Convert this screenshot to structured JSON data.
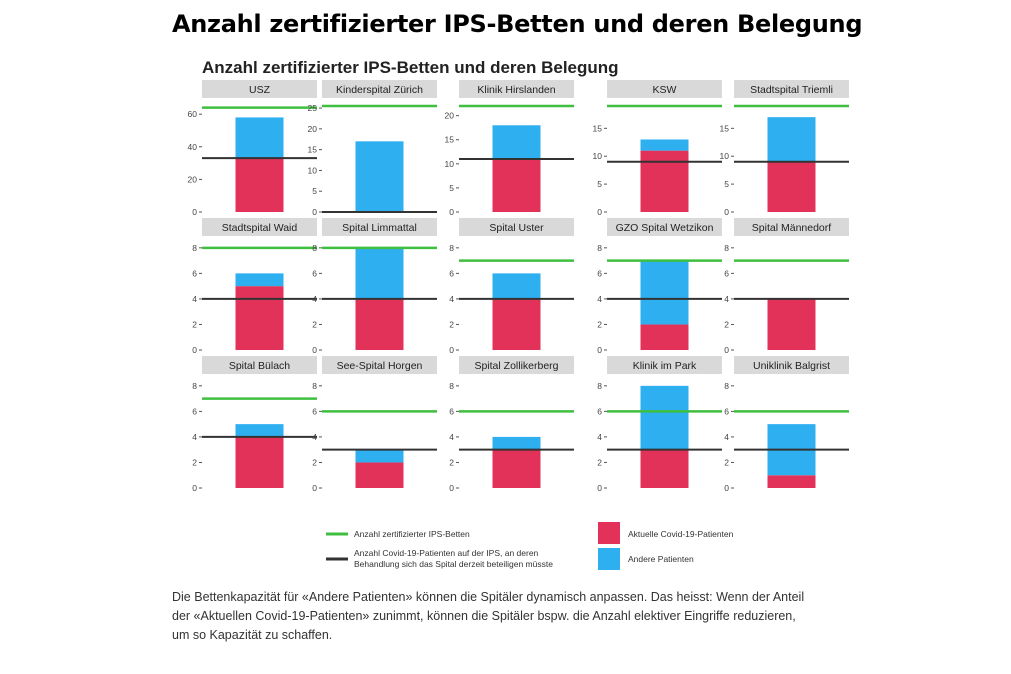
{
  "page": {
    "title": "Anzahl zertifizierter IPS-Betten und deren Belegung",
    "caption_lines": [
      "Die Bettenkapazität für «Andere Patienten» können die Spitäler dynamisch anpassen. Das heisst: Wenn der Anteil",
      "der «Aktuellen Covid-19-Patienten» zunimmt, können die Spitäler bspw. die Anzahl elektiver Eingriffe reduzieren,",
      "um so Kapazität zu schaffen."
    ]
  },
  "colors": {
    "covid": "#e3325a",
    "other": "#2eaff0",
    "certified_line": "#3fbf3f",
    "threshold_line": "#333333",
    "strip": "#d9d9d9",
    "panel_bg": "#ffffff"
  },
  "chart_data": {
    "type": "bar",
    "title": "Anzahl zertifizierter IPS-Betten und deren Belegung",
    "legend": {
      "certified": "Anzahl zertifizierter IPS-Betten",
      "threshold": "Anzahl Covid-19-Patienten auf der IPS, an deren Behandlung sich das Spital derzeit beteiligen müsste",
      "covid": "Aktuelle Covid-19-Patienten",
      "other": "Andere Patienten"
    },
    "panels": [
      {
        "name": "USZ",
        "ylim": [
          0,
          65
        ],
        "yticks": [
          0,
          20,
          40,
          60
        ],
        "covid": 33,
        "other": 25,
        "certified": 64,
        "threshold": 33
      },
      {
        "name": "Kinderspital Zürich",
        "ylim": [
          0,
          25.5
        ],
        "yticks": [
          0,
          5,
          10,
          15,
          20,
          25
        ],
        "covid": 0,
        "other": 17,
        "certified": 25.5,
        "threshold": 0
      },
      {
        "name": "Klinik Hirslanden",
        "ylim": [
          0,
          22
        ],
        "yticks": [
          0,
          5,
          10,
          15,
          20
        ],
        "covid": 11,
        "other": 7,
        "certified": 22,
        "threshold": 11
      },
      {
        "name": "KSW",
        "ylim": [
          0,
          19
        ],
        "yticks": [
          0,
          5,
          10,
          15
        ],
        "covid": 11,
        "other": 2,
        "certified": 19,
        "threshold": 9
      },
      {
        "name": "Stadtspital Triemli",
        "ylim": [
          0,
          19
        ],
        "yticks": [
          0,
          5,
          10,
          15
        ],
        "covid": 9,
        "other": 8,
        "certified": 19,
        "threshold": 9
      },
      {
        "name": "Stadtspital Waid",
        "ylim": [
          0,
          8.3
        ],
        "yticks": [
          0,
          2,
          4,
          6,
          8
        ],
        "covid": 5,
        "other": 1,
        "certified": 8,
        "threshold": 4
      },
      {
        "name": "Spital Limmattal",
        "ylim": [
          0,
          8.3
        ],
        "yticks": [
          0,
          2,
          4,
          6,
          8
        ],
        "covid": 4,
        "other": 4,
        "certified": 8,
        "threshold": 4
      },
      {
        "name": "Spital Uster",
        "ylim": [
          0,
          8.3
        ],
        "yticks": [
          0,
          2,
          4,
          6,
          8
        ],
        "covid": 4,
        "other": 2,
        "certified": 7,
        "threshold": 4
      },
      {
        "name": "GZO Spital Wetzikon",
        "ylim": [
          0,
          8.3
        ],
        "yticks": [
          0,
          2,
          4,
          6,
          8
        ],
        "covid": 2,
        "other": 5,
        "certified": 7,
        "threshold": 4
      },
      {
        "name": "Spital Männedorf",
        "ylim": [
          0,
          8.3
        ],
        "yticks": [
          0,
          2,
          4,
          6,
          8
        ],
        "covid": 4,
        "other": 0,
        "certified": 7,
        "threshold": 4
      },
      {
        "name": "Spital Bülach",
        "ylim": [
          0,
          8.3
        ],
        "yticks": [
          0,
          2,
          4,
          6,
          8
        ],
        "covid": 4,
        "other": 1,
        "certified": 7,
        "threshold": 4
      },
      {
        "name": "See-Spital Horgen",
        "ylim": [
          0,
          8.3
        ],
        "yticks": [
          0,
          2,
          4,
          6,
          8
        ],
        "covid": 2,
        "other": 1,
        "certified": 6,
        "threshold": 3
      },
      {
        "name": "Spital Zollikerberg",
        "ylim": [
          0,
          8.3
        ],
        "yticks": [
          0,
          2,
          4,
          6,
          8
        ],
        "covid": 3,
        "other": 1,
        "certified": 6,
        "threshold": 3
      },
      {
        "name": "Klinik im Park",
        "ylim": [
          0,
          8.3
        ],
        "yticks": [
          0,
          2,
          4,
          6,
          8
        ],
        "covid": 3,
        "other": 5,
        "certified": 6,
        "threshold": 3
      },
      {
        "name": "Uniklinik Balgrist",
        "ylim": [
          0,
          8.3
        ],
        "yticks": [
          0,
          2,
          4,
          6,
          8
        ],
        "covid": 1,
        "other": 4,
        "certified": 6,
        "threshold": 3
      }
    ]
  }
}
